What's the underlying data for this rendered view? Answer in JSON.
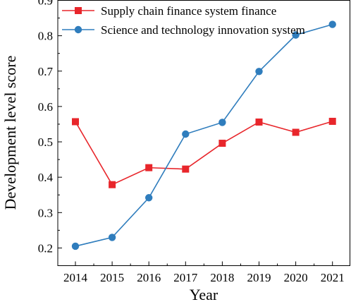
{
  "chart_data": {
    "type": "line",
    "xlabel": "Year",
    "ylabel": "Development level score",
    "categories": [
      "2014",
      "2015",
      "2016",
      "2017",
      "2018",
      "2019",
      "2020",
      "2021"
    ],
    "ylim": [
      0.15,
      0.9
    ],
    "yticks": [
      0.2,
      0.3,
      0.4,
      0.5,
      0.6,
      0.7,
      0.8,
      0.9
    ],
    "legend": "top-right",
    "grid": false,
    "series": [
      {
        "name": "Supply chain finance system finance",
        "marker": "square",
        "color": "#e8262b",
        "values": [
          0.557,
          0.379,
          0.427,
          0.423,
          0.496,
          0.556,
          0.527,
          0.558
        ]
      },
      {
        "name": "Science and technology innovation system",
        "marker": "circle",
        "color": "#2f7dbd",
        "values": [
          0.205,
          0.23,
          0.342,
          0.522,
          0.555,
          0.699,
          0.802,
          0.832
        ]
      }
    ]
  }
}
